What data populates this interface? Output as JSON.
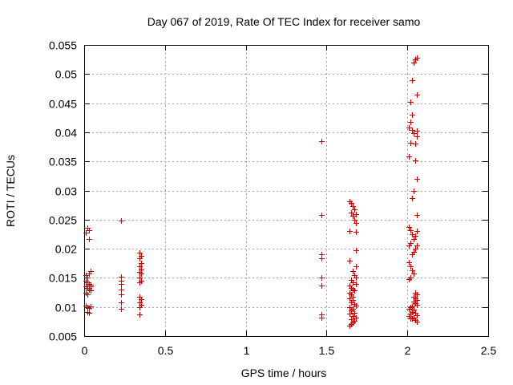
{
  "chart_data": {
    "type": "scatter",
    "title": "Day 067 of 2019, Rate Of TEC Index for receiver samo",
    "xlabel": "GPS time / hours",
    "ylabel": "ROTI / TECUs",
    "xlim": [
      0,
      2.5
    ],
    "ylim": [
      0.005,
      0.055
    ],
    "xticks": [
      0,
      0.5,
      1,
      1.5,
      2,
      2.5
    ],
    "xtick_labels": [
      "0",
      "0.5",
      "1",
      "1.5",
      "2",
      "2.5"
    ],
    "yticks": [
      0.005,
      0.01,
      0.015,
      0.02,
      0.025,
      0.03,
      0.035,
      0.04,
      0.045,
      0.05,
      0.055
    ],
    "ytick_labels": [
      "0.005",
      "0.01",
      "0.015",
      "0.02",
      "0.025",
      "0.03",
      "0.035",
      "0.04",
      "0.045",
      "0.05",
      "0.055"
    ],
    "grid": true,
    "marker": "+",
    "color": "#cc0000",
    "series": [
      {
        "name": "ROTI",
        "points": [
          [
            0.01,
            0.0228
          ],
          [
            0.02,
            0.0236
          ],
          [
            0.03,
            0.0232
          ],
          [
            0.03,
            0.0217
          ],
          [
            0.01,
            0.0155
          ],
          [
            0.02,
            0.015
          ],
          [
            0.03,
            0.0158
          ],
          [
            0.04,
            0.0161
          ],
          [
            0.01,
            0.0145
          ],
          [
            0.02,
            0.0142
          ],
          [
            0.03,
            0.014
          ],
          [
            0.04,
            0.0138
          ],
          [
            0.01,
            0.0135
          ],
          [
            0.02,
            0.0132
          ],
          [
            0.03,
            0.013
          ],
          [
            0.04,
            0.0128
          ],
          [
            0.01,
            0.0125
          ],
          [
            0.02,
            0.0122
          ],
          [
            0.03,
            0.0133
          ],
          [
            0.04,
            0.0136
          ],
          [
            0.01,
            0.0103
          ],
          [
            0.02,
            0.01
          ],
          [
            0.03,
            0.0098
          ],
          [
            0.04,
            0.0101
          ],
          [
            0.02,
            0.0092
          ],
          [
            0.03,
            0.009
          ],
          [
            0.23,
            0.0248
          ],
          [
            0.23,
            0.0152
          ],
          [
            0.23,
            0.0145
          ],
          [
            0.23,
            0.014
          ],
          [
            0.23,
            0.013
          ],
          [
            0.23,
            0.0122
          ],
          [
            0.23,
            0.0108
          ],
          [
            0.23,
            0.0097
          ],
          [
            0.34,
            0.0193
          ],
          [
            0.35,
            0.0188
          ],
          [
            0.34,
            0.0183
          ],
          [
            0.35,
            0.0176
          ],
          [
            0.34,
            0.017
          ],
          [
            0.35,
            0.0165
          ],
          [
            0.34,
            0.016
          ],
          [
            0.35,
            0.0157
          ],
          [
            0.34,
            0.015
          ],
          [
            0.35,
            0.0145
          ],
          [
            0.34,
            0.0142
          ],
          [
            0.34,
            0.0118
          ],
          [
            0.35,
            0.0113
          ],
          [
            0.34,
            0.0108
          ],
          [
            0.35,
            0.0104
          ],
          [
            0.34,
            0.01
          ],
          [
            0.34,
            0.0087
          ],
          [
            1.47,
            0.0385
          ],
          [
            1.47,
            0.0258
          ],
          [
            1.47,
            0.019
          ],
          [
            1.47,
            0.0183
          ],
          [
            1.47,
            0.015
          ],
          [
            1.47,
            0.0137
          ],
          [
            1.47,
            0.0087
          ],
          [
            1.47,
            0.0082
          ],
          [
            1.64,
            0.0281
          ],
          [
            1.65,
            0.0278
          ],
          [
            1.66,
            0.0273
          ],
          [
            1.67,
            0.0268
          ],
          [
            1.65,
            0.0262
          ],
          [
            1.68,
            0.026
          ],
          [
            1.66,
            0.0256
          ],
          [
            1.67,
            0.025
          ],
          [
            1.68,
            0.0244
          ],
          [
            1.64,
            0.0231
          ],
          [
            1.68,
            0.0229
          ],
          [
            1.68,
            0.0198
          ],
          [
            1.64,
            0.0179
          ],
          [
            1.68,
            0.017
          ],
          [
            1.66,
            0.0162
          ],
          [
            1.67,
            0.0155
          ],
          [
            1.68,
            0.015
          ],
          [
            1.65,
            0.0147
          ],
          [
            1.66,
            0.0142
          ],
          [
            1.68,
            0.014
          ],
          [
            1.64,
            0.0137
          ],
          [
            1.65,
            0.0133
          ],
          [
            1.66,
            0.013
          ],
          [
            1.67,
            0.0128
          ],
          [
            1.64,
            0.0125
          ],
          [
            1.65,
            0.0121
          ],
          [
            1.66,
            0.0118
          ],
          [
            1.64,
            0.0115
          ],
          [
            1.66,
            0.0112
          ],
          [
            1.65,
            0.0108
          ],
          [
            1.67,
            0.0105
          ],
          [
            1.68,
            0.0103
          ],
          [
            1.64,
            0.01
          ],
          [
            1.66,
            0.0097
          ],
          [
            1.65,
            0.0094
          ],
          [
            1.67,
            0.009
          ],
          [
            1.64,
            0.0088
          ],
          [
            1.66,
            0.0085
          ],
          [
            1.68,
            0.0082
          ],
          [
            1.65,
            0.0079
          ],
          [
            1.67,
            0.0076
          ],
          [
            1.66,
            0.0073
          ],
          [
            1.65,
            0.007
          ],
          [
            1.64,
            0.0068
          ],
          [
            2.06,
            0.0528
          ],
          [
            2.05,
            0.0525
          ],
          [
            2.04,
            0.052
          ],
          [
            2.03,
            0.049
          ],
          [
            2.06,
            0.0465
          ],
          [
            2.02,
            0.0452
          ],
          [
            2.03,
            0.043
          ],
          [
            2.02,
            0.0418
          ],
          [
            2.01,
            0.0408
          ],
          [
            2.03,
            0.0404
          ],
          [
            2.06,
            0.0403
          ],
          [
            2.04,
            0.0398
          ],
          [
            2.06,
            0.0393
          ],
          [
            2.02,
            0.0382
          ],
          [
            2.05,
            0.038
          ],
          [
            2.01,
            0.0358
          ],
          [
            2.05,
            0.0352
          ],
          [
            2.06,
            0.032
          ],
          [
            2.04,
            0.03
          ],
          [
            2.03,
            0.0287
          ],
          [
            2.06,
            0.0258
          ],
          [
            2.01,
            0.0238
          ],
          [
            2.02,
            0.0232
          ],
          [
            2.06,
            0.023
          ],
          [
            2.03,
            0.0225
          ],
          [
            2.05,
            0.0222
          ],
          [
            2.04,
            0.0216
          ],
          [
            2.02,
            0.021
          ],
          [
            2.01,
            0.0206
          ],
          [
            2.06,
            0.0205
          ],
          [
            2.05,
            0.02
          ],
          [
            2.04,
            0.0194
          ],
          [
            2.03,
            0.019
          ],
          [
            2.01,
            0.0177
          ],
          [
            2.02,
            0.017
          ],
          [
            2.03,
            0.0163
          ],
          [
            2.04,
            0.0158
          ],
          [
            2.02,
            0.0151
          ],
          [
            2.01,
            0.0148
          ],
          [
            2.05,
            0.0125
          ],
          [
            2.06,
            0.0122
          ],
          [
            2.04,
            0.0118
          ],
          [
            2.05,
            0.0115
          ],
          [
            2.06,
            0.0112
          ],
          [
            2.04,
            0.0109
          ],
          [
            2.05,
            0.0106
          ],
          [
            2.06,
            0.0104
          ],
          [
            2.03,
            0.0101
          ],
          [
            2.02,
            0.0099
          ],
          [
            2.01,
            0.0097
          ],
          [
            2.04,
            0.0095
          ],
          [
            2.03,
            0.0092
          ],
          [
            2.05,
            0.009
          ],
          [
            2.02,
            0.0088
          ],
          [
            2.06,
            0.0086
          ],
          [
            2.01,
            0.0084
          ],
          [
            2.04,
            0.0082
          ],
          [
            2.03,
            0.008
          ],
          [
            2.05,
            0.0078
          ],
          [
            2.06,
            0.0075
          ],
          [
            2.02,
            0.008
          ]
        ]
      }
    ]
  }
}
